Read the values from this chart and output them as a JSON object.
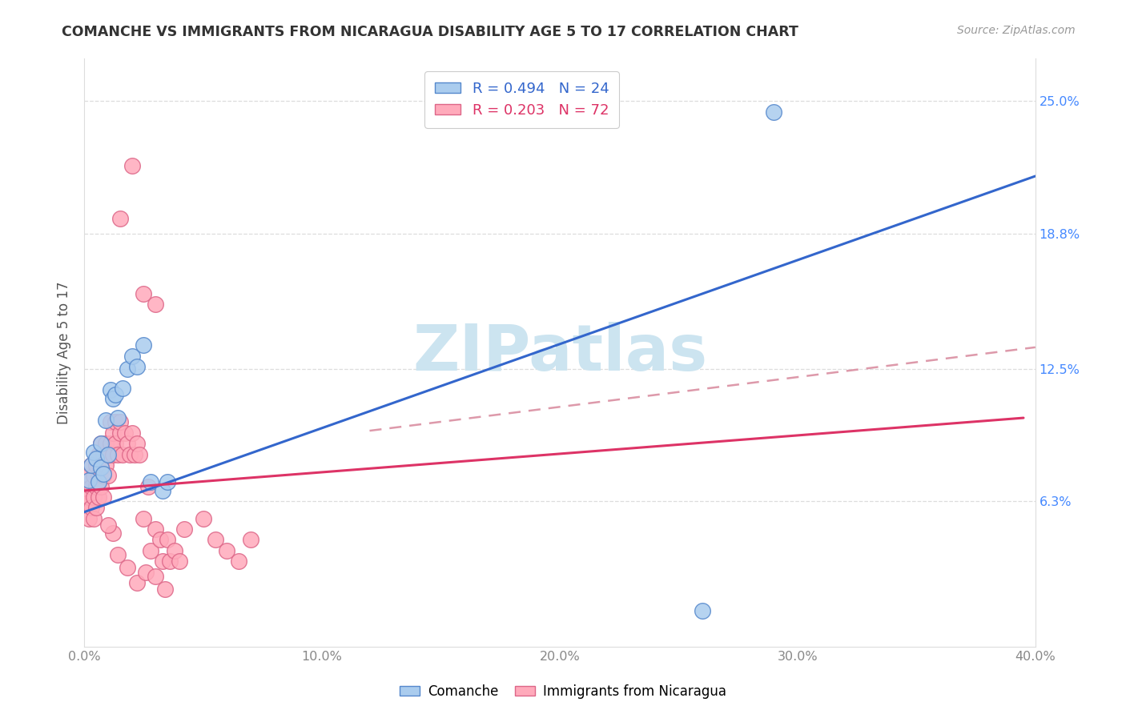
{
  "title": "COMANCHE VS IMMIGRANTS FROM NICARAGUA DISABILITY AGE 5 TO 17 CORRELATION CHART",
  "source": "Source: ZipAtlas.com",
  "ylabel": "Disability Age 5 to 17",
  "xlim": [
    0.0,
    0.4
  ],
  "ylim": [
    -0.005,
    0.27
  ],
  "xticks": [
    0.0,
    0.1,
    0.2,
    0.3,
    0.4
  ],
  "xtick_labels": [
    "0.0%",
    "10.0%",
    "20.0%",
    "30.0%",
    "40.0%"
  ],
  "yticks": [
    0.063,
    0.125,
    0.188,
    0.25
  ],
  "ytick_labels": [
    "6.3%",
    "12.5%",
    "18.8%",
    "25.0%"
  ],
  "blue_color": "#aaccee",
  "blue_edge": "#5588cc",
  "pink_color": "#ffaabb",
  "pink_edge": "#dd6688",
  "blue_line_color": "#3366cc",
  "pink_line_color": "#dd3366",
  "pink_dash_color": "#dd99aa",
  "watermark_color": "#cce4f0",
  "title_color": "#333333",
  "source_color": "#999999",
  "ylabel_color": "#555555",
  "tick_color": "#4488ff",
  "xtick_color": "#888888",
  "grid_color": "#dddddd",
  "legend_blue_label": "R = 0.494   N = 24",
  "legend_pink_label": "R = 0.203   N = 72",
  "bottom_legend_blue": "Comanche",
  "bottom_legend_pink": "Immigrants from Nicaragua",
  "blue_trend": [
    0.0,
    0.4,
    0.058,
    0.215
  ],
  "pink_trend_solid": [
    0.0,
    0.395,
    0.068,
    0.102
  ],
  "pink_trend_dashed": [
    0.12,
    0.4,
    0.096,
    0.135
  ],
  "comanche_x": [
    0.002,
    0.003,
    0.004,
    0.005,
    0.006,
    0.007,
    0.007,
    0.008,
    0.009,
    0.01,
    0.011,
    0.012,
    0.013,
    0.014,
    0.016,
    0.018,
    0.02,
    0.022,
    0.025,
    0.028,
    0.033,
    0.035,
    0.26,
    0.29
  ],
  "comanche_y": [
    0.073,
    0.08,
    0.086,
    0.083,
    0.072,
    0.09,
    0.079,
    0.076,
    0.101,
    0.085,
    0.115,
    0.111,
    0.113,
    0.102,
    0.116,
    0.125,
    0.131,
    0.126,
    0.136,
    0.072,
    0.068,
    0.072,
    0.012,
    0.245
  ],
  "nicaragua_x": [
    0.001,
    0.001,
    0.002,
    0.002,
    0.002,
    0.003,
    0.003,
    0.003,
    0.004,
    0.004,
    0.004,
    0.005,
    0.005,
    0.005,
    0.006,
    0.006,
    0.006,
    0.007,
    0.007,
    0.007,
    0.008,
    0.008,
    0.008,
    0.009,
    0.009,
    0.01,
    0.01,
    0.011,
    0.011,
    0.012,
    0.012,
    0.013,
    0.013,
    0.014,
    0.015,
    0.015,
    0.016,
    0.017,
    0.018,
    0.019,
    0.02,
    0.021,
    0.022,
    0.023,
    0.025,
    0.027,
    0.028,
    0.03,
    0.032,
    0.033,
    0.035,
    0.036,
    0.038,
    0.04,
    0.042,
    0.05,
    0.055,
    0.06,
    0.065,
    0.07,
    0.012,
    0.01,
    0.014,
    0.018,
    0.022,
    0.026,
    0.03,
    0.034,
    0.015,
    0.02,
    0.025,
    0.03
  ],
  "nicaragua_y": [
    0.068,
    0.062,
    0.075,
    0.065,
    0.055,
    0.08,
    0.07,
    0.06,
    0.075,
    0.065,
    0.055,
    0.08,
    0.07,
    0.06,
    0.085,
    0.075,
    0.065,
    0.09,
    0.08,
    0.07,
    0.085,
    0.075,
    0.065,
    0.09,
    0.08,
    0.085,
    0.075,
    0.09,
    0.1,
    0.085,
    0.095,
    0.1,
    0.09,
    0.085,
    0.095,
    0.1,
    0.085,
    0.095,
    0.09,
    0.085,
    0.095,
    0.085,
    0.09,
    0.085,
    0.055,
    0.07,
    0.04,
    0.05,
    0.045,
    0.035,
    0.045,
    0.035,
    0.04,
    0.035,
    0.05,
    0.055,
    0.045,
    0.04,
    0.035,
    0.045,
    0.048,
    0.052,
    0.038,
    0.032,
    0.025,
    0.03,
    0.028,
    0.022,
    0.195,
    0.22,
    0.16,
    0.155
  ]
}
